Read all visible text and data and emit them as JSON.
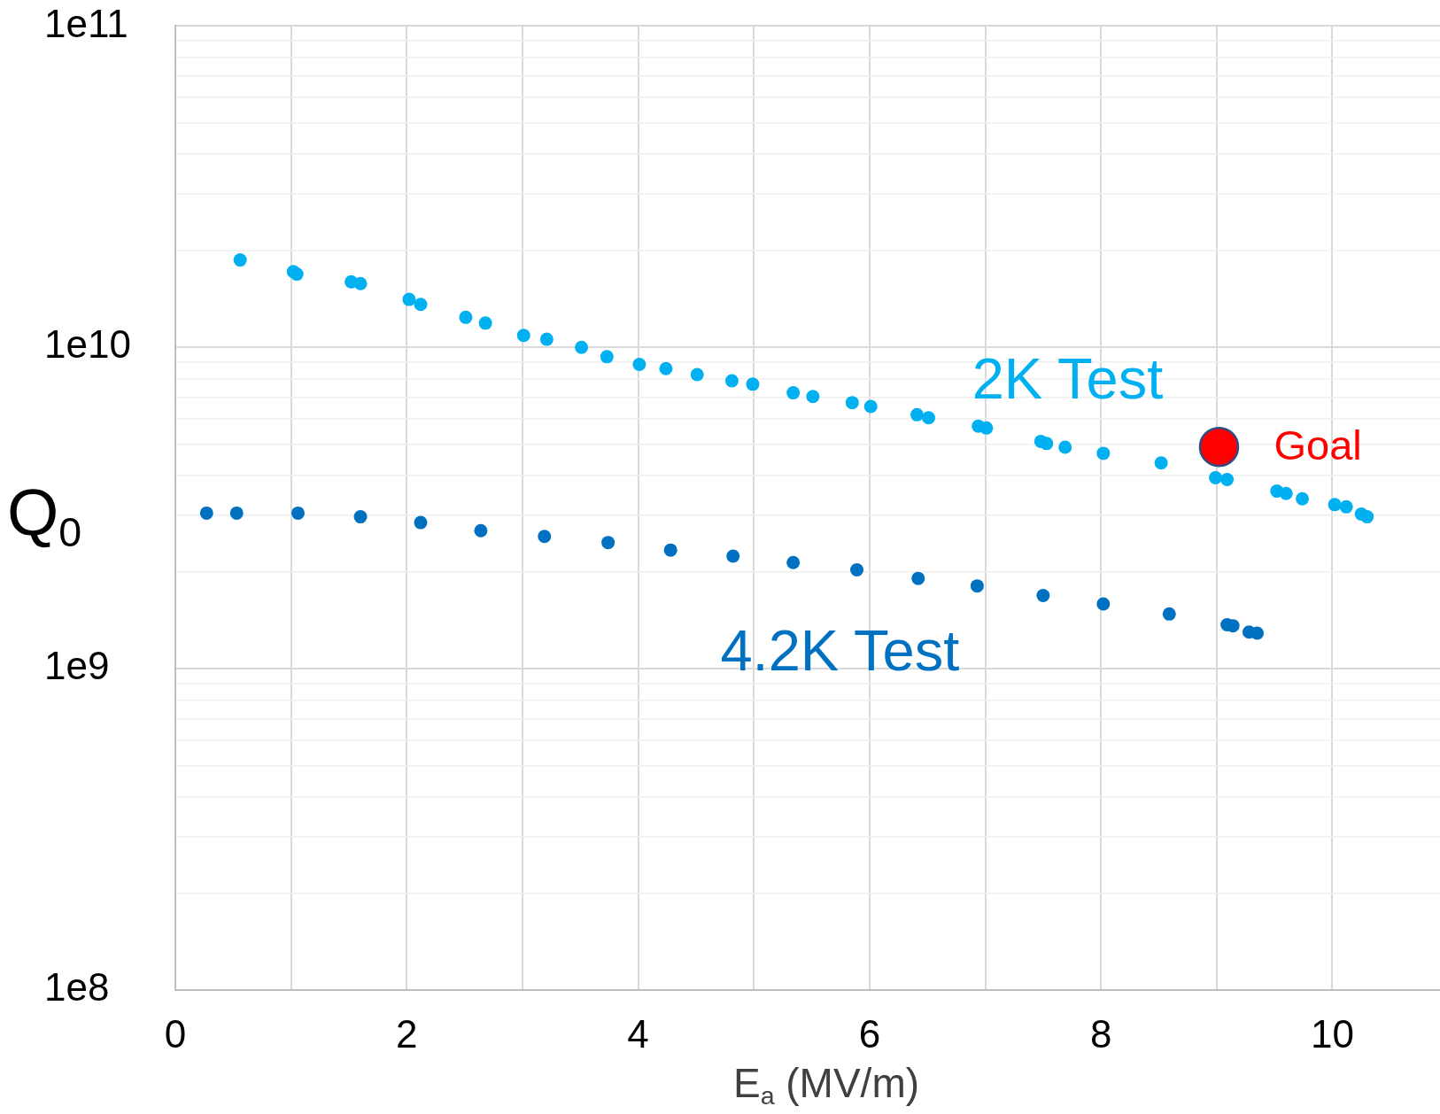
{
  "chart_data": {
    "type": "scatter",
    "xlabel": "E$_{a}$ (MV/m)",
    "ylabel": "Q$_{0}$",
    "log": "y",
    "grid": true,
    "marker": "circle",
    "legend": false,
    "xlim": [
      0,
      10.93
    ],
    "xticks": [
      0,
      {
        "value": 1,
        "label": null
      },
      2,
      {
        "value": 3,
        "label": null
      },
      4,
      {
        "value": 5,
        "label": null
      },
      6,
      {
        "value": 7,
        "label": null
      },
      8,
      {
        "value": 9,
        "label": null
      },
      10
    ],
    "ylim": [
      100000000.0,
      100000000000.0
    ],
    "yticks": [
      {
        "value": 100000000.0,
        "label": "1e8"
      },
      {
        "value": 200000000.0,
        "label": null
      },
      {
        "value": 300000000.0,
        "label": null
      },
      {
        "value": 400000000.0,
        "label": null
      },
      {
        "value": 500000000.0,
        "label": null
      },
      {
        "value": 600000000.0,
        "label": null
      },
      {
        "value": 700000000.0,
        "label": null
      },
      {
        "value": 800000000.0,
        "label": null
      },
      {
        "value": 900000000.0,
        "label": null
      },
      {
        "value": 1000000000.0,
        "label": "1e9"
      },
      {
        "value": 2000000000.0,
        "label": null
      },
      {
        "value": 3000000000.0,
        "label": null
      },
      {
        "value": 4000000000.0,
        "label": null
      },
      {
        "value": 5000000000.0,
        "label": null
      },
      {
        "value": 6000000000.0,
        "label": null
      },
      {
        "value": 7000000000.0,
        "label": null
      },
      {
        "value": 8000000000.0,
        "label": null
      },
      {
        "value": 9000000000.0,
        "label": null
      },
      {
        "value": 10000000000.0,
        "label": "1e10"
      },
      {
        "value": 20000000000.0,
        "label": null
      },
      {
        "value": 30000000000.0,
        "label": null
      },
      {
        "value": 40000000000.0,
        "label": null
      },
      {
        "value": 50000000000.0,
        "label": null
      },
      {
        "value": 60000000000.0,
        "label": null
      },
      {
        "value": 70000000000.0,
        "label": null
      },
      {
        "value": 80000000000.0,
        "label": null
      },
      {
        "value": 90000000000.0,
        "label": null
      },
      {
        "value": 100000000000.0,
        "label": "1e11"
      }
    ],
    "series": [
      {
        "name": "2K Test",
        "color": "#00b0f0",
        "x": [
          0.56,
          1.02,
          1.05,
          1.52,
          1.6,
          2.02,
          2.12,
          2.51,
          2.68,
          3.01,
          3.21,
          3.51,
          3.73,
          4.01,
          4.24,
          4.51,
          4.81,
          4.99,
          5.34,
          5.51,
          5.85,
          6.01,
          6.41,
          6.51,
          6.94,
          7.01,
          7.48,
          7.53,
          7.69,
          8.02,
          8.52,
          8.99,
          9.09,
          9.52,
          9.6,
          9.74,
          10.02,
          10.12,
          10.25,
          10.3
        ],
        "values": [
          18700000000.0,
          17200000000.0,
          16900000000.0,
          16000000000.0,
          15800000000.0,
          14100000000.0,
          13600000000.0,
          12400000000.0,
          11900000000.0,
          10900000000.0,
          10600000000.0,
          10000000000.0,
          9350000000.0,
          8850000000.0,
          8590000000.0,
          8230000000.0,
          7870000000.0,
          7680000000.0,
          7220000000.0,
          7030000000.0,
          6730000000.0,
          6550000000.0,
          6170000000.0,
          6040000000.0,
          5690000000.0,
          5610000000.0,
          5100000000.0,
          5020000000.0,
          4890000000.0,
          4680000000.0,
          4370000000.0,
          3930000000.0,
          3880000000.0,
          3570000000.0,
          3510000000.0,
          3380000000.0,
          3240000000.0,
          3190000000.0,
          3030000000.0,
          2970000000.0
        ]
      },
      {
        "name": "4.2K Test",
        "color": "#0070c0",
        "x": [
          0.27,
          0.53,
          1.06,
          1.6,
          2.12,
          2.64,
          3.19,
          3.74,
          4.28,
          4.82,
          5.34,
          5.89,
          6.42,
          6.93,
          7.5,
          8.02,
          8.59,
          9.09,
          9.14,
          9.28,
          9.35
        ],
        "values": [
          3050000000.0,
          3050000000.0,
          3050000000.0,
          2970000000.0,
          2850000000.0,
          2690000000.0,
          2580000000.0,
          2470000000.0,
          2340000000.0,
          2240000000.0,
          2140000000.0,
          2030000000.0,
          1910000000.0,
          1810000000.0,
          1690000000.0,
          1590000000.0,
          1480000000.0,
          1370000000.0,
          1360000000.0,
          1300000000.0,
          1290000000.0
        ]
      },
      {
        "name": "Goal",
        "color": "#ff0000",
        "x": [
          9.02
        ],
        "values": [
          4900000000.0
        ]
      }
    ]
  }
}
